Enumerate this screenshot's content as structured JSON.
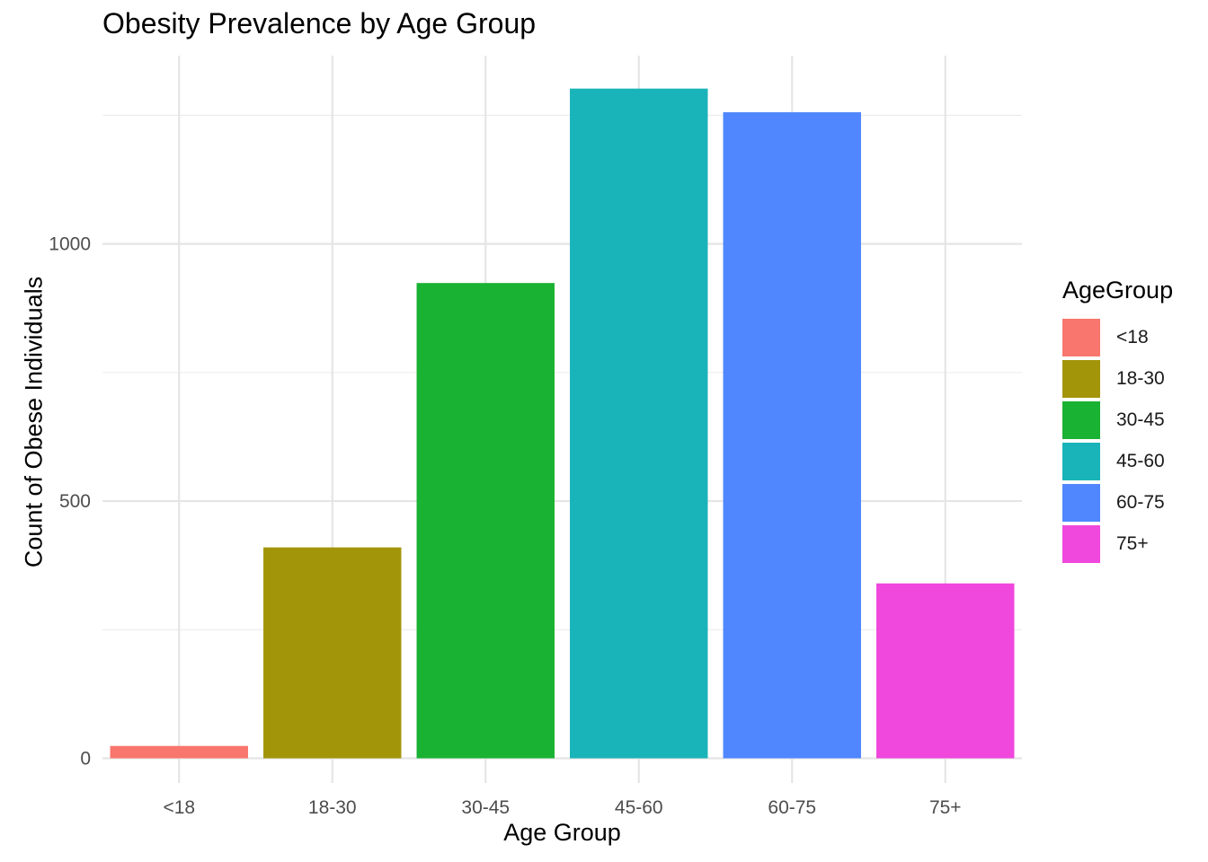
{
  "chart_data": {
    "type": "bar",
    "title": "Obesity Prevalence by Age Group",
    "xlabel": "Age Group",
    "ylabel": "Count of Obese Individuals",
    "categories": [
      "<18",
      "18-30",
      "30-45",
      "45-60",
      "60-75",
      "75+"
    ],
    "values": [
      24,
      410,
      924,
      1302,
      1256,
      340
    ],
    "colors": [
      "#F8766D",
      "#A3950A",
      "#1AB232",
      "#19B4B9",
      "#5087FF",
      "#F047DD"
    ],
    "ylim": [
      -48,
      1366
    ],
    "y_major_ticks": [
      0,
      500,
      1000
    ],
    "y_minor_ticks": [
      250,
      750,
      1250
    ],
    "grid": true,
    "legend": {
      "title": "AgeGroup",
      "position": "right",
      "entries": [
        "<18",
        "18-30",
        "30-45",
        "45-60",
        "60-75",
        "75+"
      ]
    }
  }
}
